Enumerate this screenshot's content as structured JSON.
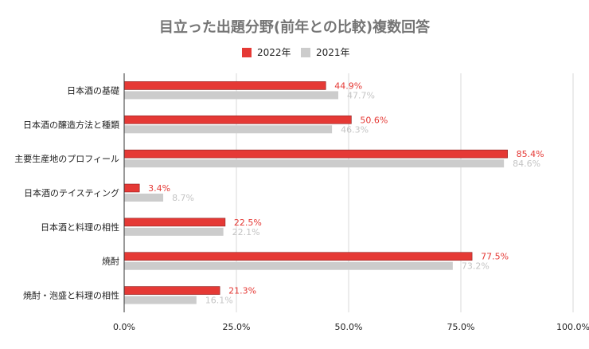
{
  "chart_data": {
    "type": "bar",
    "orientation": "horizontal",
    "title": "目立った出題分野(前年との比較)複数回答",
    "categories": [
      "日本酒の基礎",
      "日本酒の醸造方法と種類",
      "主要生産地のプロフィール",
      "日本酒のテイスティング",
      "日本酒と料理の相性",
      "焼酎",
      "焼酎・泡盛と料理の相性"
    ],
    "series": [
      {
        "name": "2022年",
        "color": "#e53935",
        "values": [
          44.9,
          50.6,
          85.4,
          3.4,
          22.5,
          77.5,
          21.3
        ],
        "labels": [
          "44.9%",
          "50.6%",
          "85.4%",
          "3.4%",
          "22.5%",
          "77.5%",
          "21.3%"
        ]
      },
      {
        "name": "2021年",
        "color": "#cccccc",
        "values": [
          47.7,
          46.3,
          84.6,
          8.7,
          22.1,
          73.2,
          16.1
        ],
        "labels": [
          "47.7%",
          "46.3%",
          "84.6%",
          "8.7%",
          "22.1%",
          "73.2%",
          "16.1%"
        ]
      }
    ],
    "xlim": [
      0,
      100
    ],
    "xticks": [
      0,
      25,
      50,
      75,
      100
    ],
    "xtick_labels": [
      "0.0%",
      "25.0%",
      "50.0%",
      "75.0%",
      "100.0%"
    ],
    "grid": true,
    "legend_position": "top-center"
  }
}
